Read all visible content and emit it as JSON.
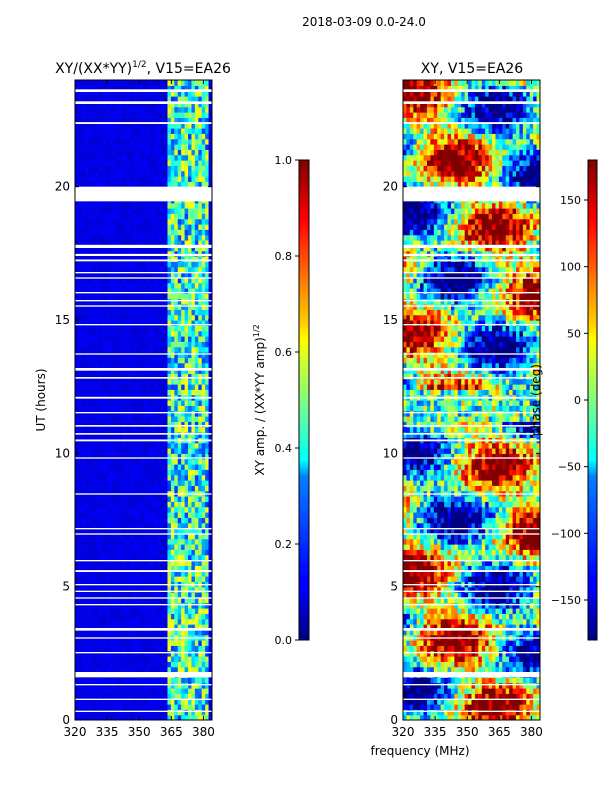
{
  "suptitle": "2018-03-09 0.0-24.0",
  "xlabel": "frequency (MHz)",
  "chart_data": [
    {
      "type": "heatmap",
      "title_main": "XY/(XX*YY)",
      "title_sup": "1/2",
      "title_tail": ", V15=EA26",
      "xlabel": "",
      "ylabel": "UT (hours)",
      "xlim": [
        320,
        384
      ],
      "ylim": [
        0,
        24
      ],
      "xticks": [
        320,
        335,
        350,
        365,
        380
      ],
      "yticks": [
        0,
        5,
        10,
        15,
        20
      ],
      "colorbar": {
        "label_main": "XY amp. / (XX*YY amp)",
        "label_sup": "1/2",
        "range": [
          0.0,
          1.0
        ],
        "ticks": [
          "0.0",
          "0.2",
          "0.4",
          "0.6",
          "0.8",
          "1.0"
        ]
      },
      "active_band_MHz": [
        363,
        382
      ],
      "typical_value_quiet": 0.1,
      "typical_value_active": 0.4
    },
    {
      "type": "heatmap",
      "title_main": "XY, V15=EA26",
      "xlabel": "",
      "ylabel": "",
      "xlim": [
        320,
        384
      ],
      "ylim": [
        0,
        24
      ],
      "xticks": [
        320,
        335,
        350,
        365,
        380
      ],
      "yticks": [
        0,
        5,
        10,
        15,
        20
      ],
      "colorbar": {
        "label_main": "phase (deg)",
        "range": [
          -180,
          180
        ],
        "ticks": [
          "-150",
          "-100",
          "-50",
          "0",
          "50",
          "100",
          "150"
        ]
      }
    }
  ],
  "gaps_hours": [
    [
      23.55,
      23.65
    ],
    [
      23.1,
      23.2
    ],
    [
      22.35,
      22.42
    ],
    [
      19.45,
      20.0
    ],
    [
      17.7,
      17.82
    ],
    [
      17.4,
      17.48
    ],
    [
      17.2,
      17.27
    ],
    [
      16.75,
      16.8
    ],
    [
      16.55,
      16.6
    ],
    [
      16.0,
      16.05
    ],
    [
      15.7,
      15.75
    ],
    [
      15.5,
      15.55
    ],
    [
      14.8,
      14.85
    ],
    [
      13.7,
      13.75
    ],
    [
      13.1,
      13.2
    ],
    [
      12.8,
      12.86
    ],
    [
      12.05,
      12.12
    ],
    [
      11.5,
      11.55
    ],
    [
      11.0,
      11.06
    ],
    [
      10.7,
      10.76
    ],
    [
      10.45,
      10.52
    ],
    [
      9.8,
      9.85
    ],
    [
      8.45,
      8.5
    ],
    [
      7.15,
      7.2
    ],
    [
      6.95,
      7.0
    ],
    [
      5.95,
      6.0
    ],
    [
      5.55,
      5.62
    ],
    [
      5.05,
      5.1
    ],
    [
      4.8,
      4.85
    ],
    [
      4.55,
      4.6
    ],
    [
      4.3,
      4.35
    ],
    [
      3.35,
      3.45
    ],
    [
      3.05,
      3.1
    ],
    [
      2.5,
      2.55
    ],
    [
      1.6,
      1.8
    ],
    [
      1.3,
      1.35
    ],
    [
      0.75,
      0.8
    ],
    [
      0.3,
      0.35
    ]
  ]
}
